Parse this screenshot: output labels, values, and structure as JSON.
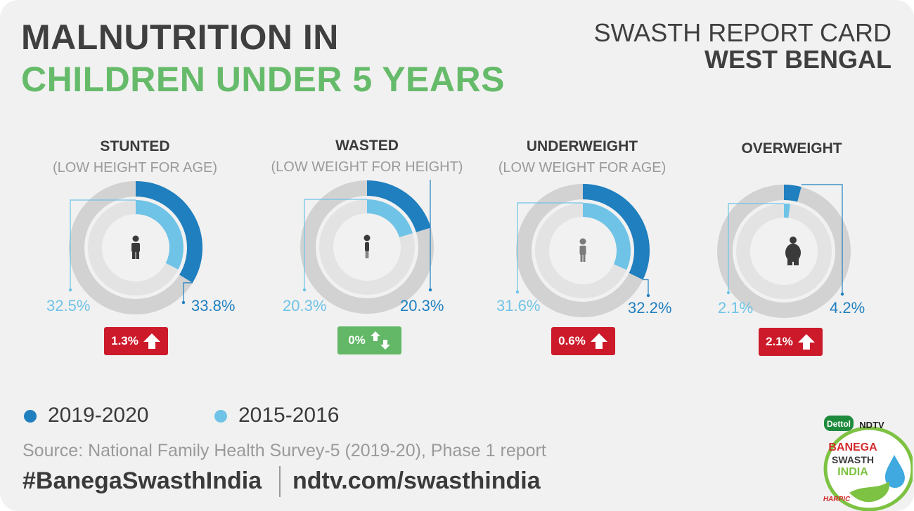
{
  "header": {
    "title_line1": "MALNUTRITION IN",
    "title_line2": "CHILDREN UNDER 5 YEARS",
    "report_card": "SWASTH REPORT CARD",
    "state": "WEST BENGAL"
  },
  "colors": {
    "new": "#1f7fbf",
    "old": "#6fc3e6",
    "ring_track": "#d2d2d2",
    "inner_track": "#e3e3e3",
    "increase": "#cc1a2a",
    "no_change": "#62b866",
    "title_green": "#66bb6a"
  },
  "chart_data": {
    "type": "donut",
    "series": [
      {
        "name": "2019-2020",
        "values": [
          33.8,
          20.3,
          32.2,
          4.2
        ]
      },
      {
        "name": "2015-2016",
        "values": [
          32.5,
          20.3,
          31.6,
          2.1
        ]
      }
    ],
    "panels": [
      {
        "title": "STUNTED",
        "subtitle": "(LOW HEIGHT FOR AGE)",
        "old_label": "32.5%",
        "new_label": "33.8%",
        "change": "1.3%",
        "trend": "up",
        "icon": "child-icon"
      },
      {
        "title": "WASTED",
        "subtitle": "(LOW WEIGHT FOR HEIGHT)",
        "old_label": "20.3%",
        "new_label": "20.3%",
        "change": "0%",
        "trend": "same",
        "icon": "thin-child-icon"
      },
      {
        "title": "UNDERWEIGHT",
        "subtitle": "(LOW WEIGHT FOR AGE)",
        "old_label": "31.6%",
        "new_label": "32.2%",
        "change": "0.6%",
        "trend": "up",
        "icon": "small-child-icon"
      },
      {
        "title": "OVERWEIGHT",
        "subtitle": "",
        "old_label": "2.1%",
        "new_label": "4.2%",
        "change": "2.1%",
        "trend": "up",
        "icon": "heavy-child-icon"
      }
    ]
  },
  "legend": [
    {
      "label": "2019-2020",
      "color": "#1f7fbf"
    },
    {
      "label": "2015-2016",
      "color": "#6fc3e6"
    }
  ],
  "footer": {
    "source": "Source: National Family Health Survey-5 (2019-20), Phase 1 report",
    "hashtag": "#BanegaSwasthIndia",
    "website": "ndtv.com/swasthindia"
  },
  "logo": {
    "brand1": "Dettol",
    "brand2": "NDTV",
    "line1": "BANEGA",
    "line2": "SWASTH",
    "line3": "INDIA",
    "brand3": "HARPIC"
  }
}
